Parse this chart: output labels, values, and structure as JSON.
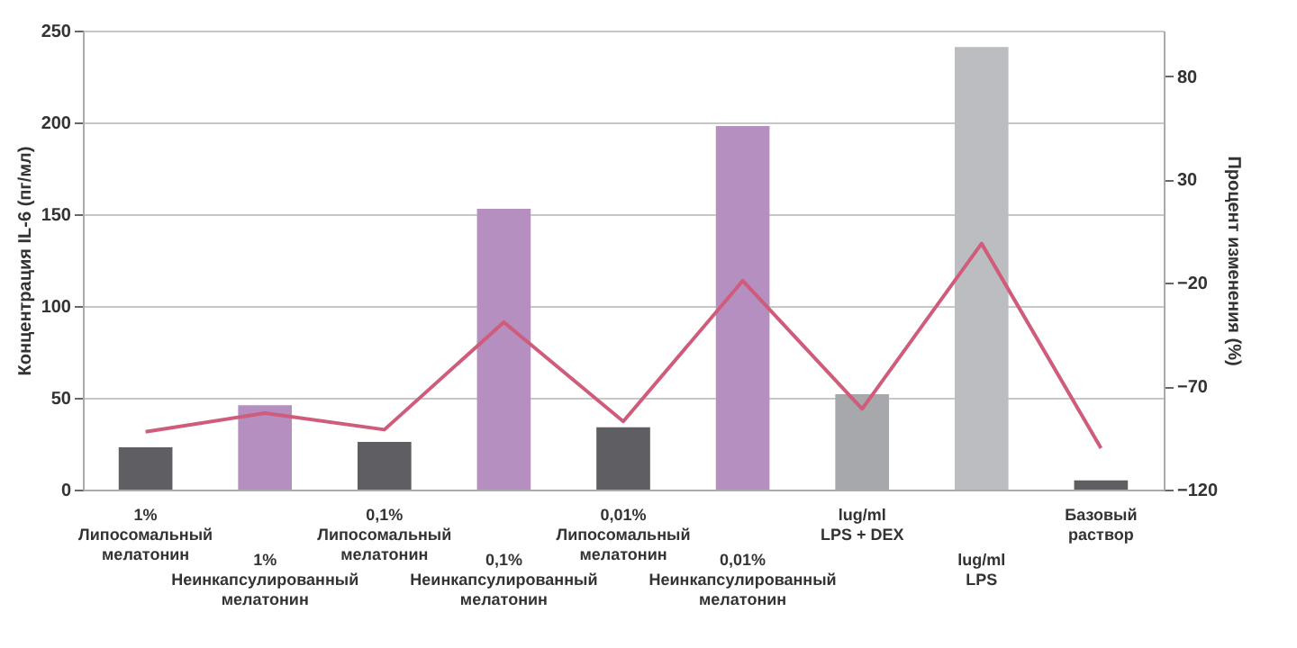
{
  "chart_data": {
    "type": "bar",
    "ylabel": "Концентрация IL-6 (пг/мл)",
    "y2label": "Процент изменения (%)",
    "categories": [
      "1%\nЛипосомальный\nмелатонин",
      "1%\nНеинкапсулированный\nмелатонин",
      "0,1%\nЛипосомальный\nмелатонин",
      "0,1%\nНеинкапсулированный\nмелатонин",
      "0,01%\nЛипосомальный\nмелатонин",
      "0,01%\nНеинкапсулированный\nмелатонин",
      "lug/ml\nLPS + DEX",
      "lug/ml\nLPS",
      "Базовый\nраствор"
    ],
    "series": [
      {
        "colors": [
          "#5f5e63",
          "#b48fbf",
          "#5f5e63",
          "#b48fbf",
          "#5f5e63",
          "#b48fbf",
          "#a7a8ab",
          "#bcbdc0",
          "#5f5e63"
        ],
        "values": [
          23,
          46,
          26,
          153,
          34,
          198,
          52,
          241,
          5
        ]
      },
      {
        "type": "line",
        "axis": "y2",
        "color": "#cf5c7a",
        "values": [
          -92,
          -83,
          -91,
          -39,
          -87,
          -19,
          -81,
          -1,
          -100
        ]
      }
    ],
    "ylim": [
      0,
      250
    ],
    "yticks": [
      0,
      50,
      100,
      150,
      200,
      250
    ],
    "y2lim": [
      -120,
      102
    ],
    "y2ticks": [
      -120,
      -70,
      -20,
      30,
      80
    ],
    "grid": "y",
    "marker": "none",
    "line_style": "solid"
  }
}
